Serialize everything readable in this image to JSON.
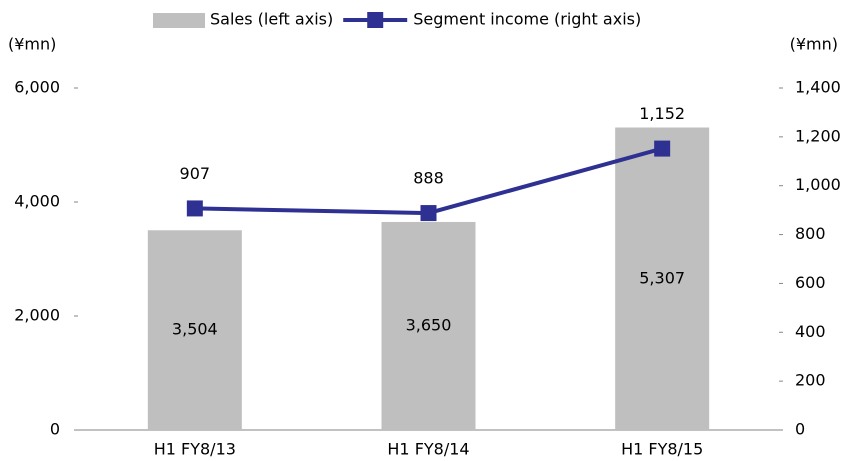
{
  "chart_data": {
    "type": "bar",
    "categories": [
      "H1 FY8/13",
      "H1 FY8/14",
      "H1 FY8/15"
    ],
    "y_unit": "(¥mn)",
    "y2_unit": "(¥mn)",
    "ylim": [
      0,
      6000
    ],
    "yticks": [
      0,
      {
        "value": 2000,
        "label": "2,000"
      },
      {
        "value": 4000,
        "label": "4,000"
      },
      {
        "value": 6000,
        "label": "6,000"
      }
    ],
    "y2lim": [
      0,
      1400
    ],
    "y2ticks": [
      0,
      200,
      400,
      600,
      800,
      {
        "value": 1000,
        "label": "1,000"
      },
      {
        "value": 1200,
        "label": "1,200"
      },
      {
        "value": 1400,
        "label": "1,400"
      }
    ],
    "legend": "top",
    "series": [
      {
        "name": "Sales (left axis)",
        "type": "bar",
        "color": "#bfbfbf",
        "values": [
          3504,
          3650,
          5307
        ],
        "value_labels": [
          "3,504",
          "3,650",
          "5,307"
        ]
      },
      {
        "name": "Segment income (right axis)",
        "type": "line",
        "axis": "y2",
        "color": "#2e3192",
        "values": [
          907,
          888,
          1152
        ],
        "value_labels": [
          "907",
          "888",
          "1,152"
        ]
      }
    ]
  }
}
